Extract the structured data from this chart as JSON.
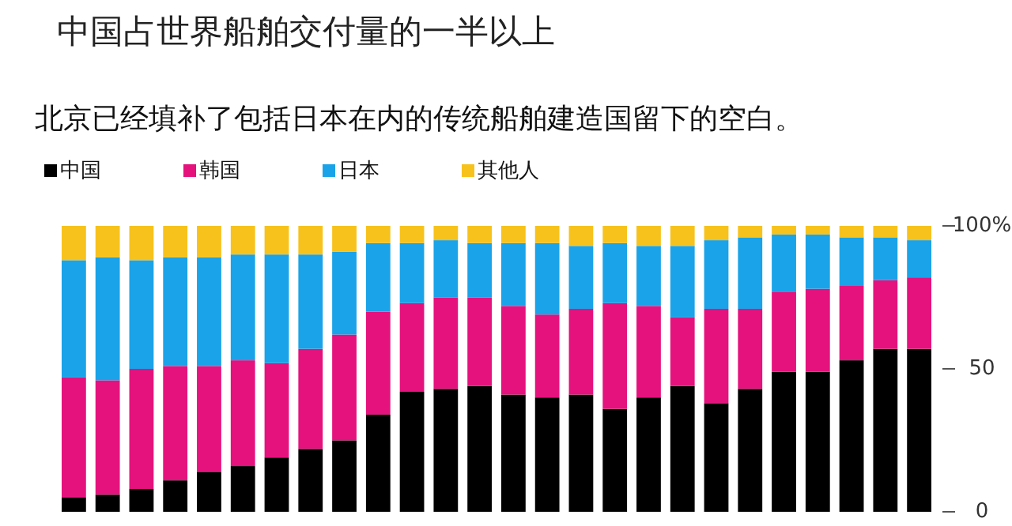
{
  "chart_data": {
    "type": "bar",
    "title": "中国占世界船舶交付量的一半以上",
    "subtitle": "北京已经填补了包括日本在内的传统船舶建造国留下的空白。",
    "categories": [
      null,
      null,
      null,
      null,
      null,
      null,
      null,
      null,
      null,
      null,
      null,
      null,
      null,
      null,
      null,
      null,
      null,
      null,
      null,
      null,
      null,
      null,
      null,
      null,
      null,
      null
    ],
    "stacked": true,
    "legend": "top left",
    "grid": false,
    "tick_labels": "y",
    "ylim": [
      0,
      100
    ],
    "yticks": [
      0,
      50,
      {
        "value": 100,
        "label": "100%"
      }
    ],
    "series": [
      {
        "name": "中国",
        "color": "#000000",
        "values": [
          5,
          6,
          8,
          11,
          14,
          16,
          19,
          22,
          25,
          34,
          42,
          43,
          44,
          41,
          40,
          41,
          36,
          40,
          44,
          38,
          43,
          49,
          49,
          53,
          57,
          57
        ]
      },
      {
        "name": "韩国",
        "color": "#e5127d",
        "values": [
          42,
          40,
          42,
          40,
          37,
          37,
          33,
          35,
          37,
          36,
          31,
          32,
          31,
          31,
          29,
          30,
          37,
          32,
          24,
          33,
          28,
          28,
          29,
          26,
          24,
          25
        ]
      },
      {
        "name": "日本",
        "color": "#1aa3e8",
        "values": [
          41,
          43,
          38,
          38,
          38,
          37,
          38,
          33,
          29,
          24,
          21,
          20,
          19,
          22,
          25,
          22,
          21,
          21,
          25,
          24,
          25,
          20,
          19,
          17,
          15,
          13
        ]
      },
      {
        "name": "其他人",
        "color": "#f7c21c",
        "values": [
          12,
          11,
          12,
          11,
          11,
          10,
          10,
          10,
          9,
          6,
          6,
          5,
          6,
          6,
          6,
          7,
          6,
          7,
          7,
          5,
          4,
          3,
          3,
          4,
          4,
          5
        ]
      }
    ]
  }
}
